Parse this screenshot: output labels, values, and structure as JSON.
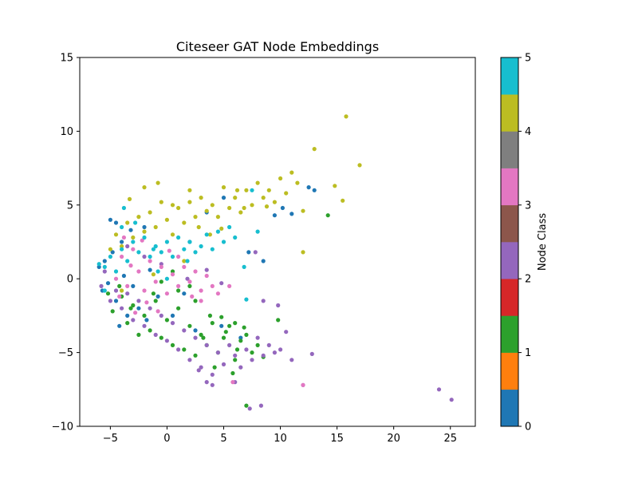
{
  "chart_data": {
    "type": "scatter",
    "title": "Citeseer GAT Node Embeddings",
    "xlabel": "",
    "ylabel": "",
    "xlim": [
      -7.7,
      27.2
    ],
    "ylim": [
      -10,
      15
    ],
    "x_ticks": [
      -5,
      0,
      5,
      10,
      15,
      20,
      25
    ],
    "y_ticks": [
      -10,
      -5,
      0,
      5,
      10,
      15
    ],
    "grid": false,
    "legend": "none",
    "colorbar": {
      "label": "Node Class",
      "range": [
        0,
        5
      ],
      "ticks": [
        0,
        1,
        2,
        3,
        4,
        5
      ],
      "colors": [
        "#1f77b4",
        "#ff7f0e",
        "#2ca02c",
        "#d62728",
        "#9467bd",
        "#8c564b",
        "#e377c2",
        "#7f7f7f",
        "#bcbd22",
        "#17becf"
      ]
    },
    "series": [
      {
        "class": 0,
        "color": "#1f77b4",
        "points": [
          [
            -6.0,
            0.8
          ],
          [
            -5.5,
            1.2
          ],
          [
            -5.2,
            -0.3
          ],
          [
            -4.8,
            1.8
          ],
          [
            -4.5,
            -1.5
          ],
          [
            -4.0,
            2.5
          ],
          [
            -3.8,
            0.2
          ],
          [
            -3.5,
            -2.5
          ],
          [
            -3.2,
            3.3
          ],
          [
            -5.7,
            -0.8
          ],
          [
            -4.2,
            -3.2
          ],
          [
            -2.5,
            -2.0
          ],
          [
            -1.8,
            -2.8
          ],
          [
            -0.8,
            -1.2
          ],
          [
            0.5,
            -2.5
          ],
          [
            1.5,
            -1.0
          ],
          [
            2.5,
            -3.5
          ],
          [
            4.8,
            -3.2
          ],
          [
            6.5,
            -4.0
          ],
          [
            3.5,
            4.5
          ],
          [
            5.0,
            5.5
          ],
          [
            8.5,
            1.2
          ],
          [
            9.5,
            4.3
          ],
          [
            10.2,
            4.8
          ],
          [
            11.0,
            4.4
          ],
          [
            12.5,
            6.2
          ],
          [
            13.0,
            6.0
          ],
          [
            7.2,
            1.8
          ],
          [
            2.0,
            2.5
          ],
          [
            -2.0,
            3.5
          ],
          [
            -4.5,
            3.8
          ],
          [
            -5.0,
            4.0
          ],
          [
            -3.0,
            -0.5
          ],
          [
            -1.5,
            0.6
          ]
        ]
      },
      {
        "class": 1,
        "color": "#2ca02c",
        "points": [
          [
            -5.2,
            -1.0
          ],
          [
            -4.8,
            -2.2
          ],
          [
            -4.0,
            -1.2
          ],
          [
            -3.5,
            -3.0
          ],
          [
            -3.0,
            -1.8
          ],
          [
            -2.5,
            -3.8
          ],
          [
            -2.0,
            -2.5
          ],
          [
            -1.5,
            -3.5
          ],
          [
            -1.0,
            -1.5
          ],
          [
            -0.5,
            -4.0
          ],
          [
            0.0,
            -2.8
          ],
          [
            0.5,
            -4.5
          ],
          [
            1.0,
            -2.0
          ],
          [
            1.5,
            -4.8
          ],
          [
            2.0,
            -3.2
          ],
          [
            2.5,
            -5.2
          ],
          [
            3.0,
            -3.8
          ],
          [
            3.5,
            -4.5
          ],
          [
            4.0,
            -3.0
          ],
          [
            4.5,
            -5.0
          ],
          [
            5.0,
            -4.0
          ],
          [
            5.5,
            -3.2
          ],
          [
            6.0,
            -5.5
          ],
          [
            6.5,
            -4.2
          ],
          [
            7.0,
            -3.8
          ],
          [
            7.5,
            -5.0
          ],
          [
            8.0,
            -4.5
          ],
          [
            5.8,
            -6.4
          ],
          [
            7.0,
            -8.6
          ],
          [
            9.8,
            -2.8
          ],
          [
            6.0,
            -3.0
          ],
          [
            4.2,
            -6.0
          ],
          [
            1.0,
            -0.8
          ],
          [
            0.5,
            0.5
          ],
          [
            -0.5,
            -0.2
          ],
          [
            2.5,
            -1.5
          ],
          [
            3.8,
            -2.5
          ],
          [
            5.2,
            -3.6
          ],
          [
            6.8,
            -3.3
          ],
          [
            8.5,
            -5.3
          ],
          [
            14.2,
            4.3
          ],
          [
            -4.2,
            -0.5
          ],
          [
            -3.2,
            -2.0
          ],
          [
            -1.2,
            -1.0
          ],
          [
            2.0,
            -0.5
          ],
          [
            3.2,
            -4.0
          ],
          [
            6.2,
            -4.8
          ],
          [
            4.8,
            -2.6
          ]
        ]
      },
      {
        "class": 2,
        "color": "#9467bd",
        "points": [
          [
            -5.8,
            -0.5
          ],
          [
            -5.5,
            0.5
          ],
          [
            -5.0,
            -1.5
          ],
          [
            -4.5,
            -0.8
          ],
          [
            -4.0,
            -2.0
          ],
          [
            -3.5,
            -1.0
          ],
          [
            -3.0,
            -2.8
          ],
          [
            -2.5,
            -1.5
          ],
          [
            -2.0,
            -3.2
          ],
          [
            -1.5,
            -2.0
          ],
          [
            -1.0,
            -3.8
          ],
          [
            -0.5,
            -2.5
          ],
          [
            0.0,
            -4.2
          ],
          [
            0.5,
            -3.0
          ],
          [
            1.0,
            -4.8
          ],
          [
            1.5,
            -3.5
          ],
          [
            2.0,
            -5.5
          ],
          [
            2.5,
            -4.0
          ],
          [
            3.0,
            -6.0
          ],
          [
            3.5,
            -4.5
          ],
          [
            4.0,
            -6.5
          ],
          [
            4.5,
            -5.0
          ],
          [
            5.0,
            -5.8
          ],
          [
            5.5,
            -4.5
          ],
          [
            6.0,
            -5.2
          ],
          [
            6.5,
            -6.0
          ],
          [
            7.0,
            -4.8
          ],
          [
            7.5,
            -5.5
          ],
          [
            8.0,
            -4.0
          ],
          [
            8.5,
            -5.2
          ],
          [
            9.0,
            -4.5
          ],
          [
            9.5,
            -5.0
          ],
          [
            10.0,
            -4.8
          ],
          [
            11.0,
            -5.5
          ],
          [
            12.0,
            -7.2
          ],
          [
            12.8,
            -5.1
          ],
          [
            7.3,
            -8.8
          ],
          [
            8.3,
            -8.6
          ],
          [
            6.0,
            -7.0
          ],
          [
            3.5,
            -7.0
          ],
          [
            24.0,
            -7.5
          ],
          [
            25.1,
            -8.2
          ],
          [
            10.5,
            -3.6
          ],
          [
            9.8,
            -1.8
          ],
          [
            8.5,
            -1.5
          ],
          [
            7.8,
            1.8
          ],
          [
            4.8,
            -0.3
          ],
          [
            3.5,
            0.6
          ],
          [
            1.8,
            0.0
          ],
          [
            -0.5,
            1.0
          ],
          [
            -3.5,
            2.2
          ],
          [
            -2.0,
            1.5
          ],
          [
            4.0,
            -7.2
          ],
          [
            2.8,
            -6.2
          ]
        ]
      },
      {
        "class": 3,
        "color": "#e377c2",
        "points": [
          [
            -4.5,
            0.0
          ],
          [
            -4.0,
            1.5
          ],
          [
            -3.5,
            -0.5
          ],
          [
            -3.0,
            2.0
          ],
          [
            -2.5,
            0.5
          ],
          [
            -2.0,
            -0.8
          ],
          [
            -1.5,
            1.2
          ],
          [
            -1.0,
            -0.2
          ],
          [
            -0.5,
            0.8
          ],
          [
            0.0,
            -1.0
          ],
          [
            0.5,
            0.3
          ],
          [
            1.0,
            -0.5
          ],
          [
            1.5,
            0.8
          ],
          [
            2.0,
            -0.2
          ],
          [
            2.5,
            0.5
          ],
          [
            3.0,
            -0.8
          ],
          [
            3.5,
            0.2
          ],
          [
            4.0,
            -0.5
          ],
          [
            4.5,
            -1.0
          ],
          [
            5.5,
            -0.5
          ],
          [
            5.8,
            -7.0
          ],
          [
            3.0,
            -1.5
          ],
          [
            -2.8,
            -2.3
          ],
          [
            -3.8,
            2.8
          ],
          [
            -2.2,
            2.6
          ],
          [
            12.0,
            -7.2
          ],
          [
            1.0,
            1.5
          ],
          [
            -1.8,
            -1.6
          ],
          [
            -0.8,
            -2.2
          ],
          [
            2.2,
            -1.2
          ],
          [
            -4.2,
            -1.2
          ],
          [
            -3.2,
            0.9
          ],
          [
            0.2,
            1.9
          ]
        ]
      },
      {
        "class": 4,
        "color": "#bcbd22",
        "points": [
          [
            -5.0,
            2.0
          ],
          [
            -4.5,
            3.0
          ],
          [
            -4.0,
            2.2
          ],
          [
            -3.5,
            3.8
          ],
          [
            -3.0,
            2.8
          ],
          [
            -2.5,
            4.2
          ],
          [
            -2.0,
            3.2
          ],
          [
            -1.5,
            4.5
          ],
          [
            -1.0,
            3.5
          ],
          [
            -0.5,
            5.2
          ],
          [
            0.0,
            4.0
          ],
          [
            0.5,
            3.0
          ],
          [
            1.0,
            4.8
          ],
          [
            1.5,
            3.8
          ],
          [
            2.0,
            5.2
          ],
          [
            2.5,
            4.2
          ],
          [
            3.0,
            5.5
          ],
          [
            3.5,
            4.6
          ],
          [
            4.0,
            5.0
          ],
          [
            4.5,
            4.2
          ],
          [
            5.0,
            6.2
          ],
          [
            5.5,
            4.8
          ],
          [
            6.0,
            5.5
          ],
          [
            6.5,
            4.5
          ],
          [
            7.0,
            6.0
          ],
          [
            7.5,
            5.0
          ],
          [
            8.0,
            6.5
          ],
          [
            8.5,
            5.5
          ],
          [
            9.0,
            6.0
          ],
          [
            9.5,
            5.2
          ],
          [
            10.0,
            6.8
          ],
          [
            10.5,
            5.8
          ],
          [
            11.0,
            7.2
          ],
          [
            11.5,
            6.5
          ],
          [
            12.0,
            4.6
          ],
          [
            13.0,
            8.8
          ],
          [
            15.8,
            11.0
          ],
          [
            17.0,
            7.7
          ],
          [
            14.8,
            6.3
          ],
          [
            15.5,
            5.3
          ],
          [
            12.0,
            1.8
          ],
          [
            -2.0,
            6.2
          ],
          [
            -0.8,
            6.5
          ],
          [
            2.0,
            6.0
          ],
          [
            6.2,
            6.0
          ],
          [
            -3.3,
            5.4
          ],
          [
            -1.2,
            0.3
          ],
          [
            1.5,
            1.2
          ],
          [
            -4.0,
            -0.8
          ],
          [
            0.5,
            5.0
          ],
          [
            2.8,
            3.5
          ],
          [
            3.8,
            3.0
          ],
          [
            4.8,
            3.4
          ],
          [
            6.8,
            4.8
          ],
          [
            8.8,
            4.9
          ]
        ]
      },
      {
        "class": 5,
        "color": "#17becf",
        "points": [
          [
            -5.5,
            0.8
          ],
          [
            -5.0,
            1.5
          ],
          [
            -4.5,
            0.5
          ],
          [
            -4.0,
            2.0
          ],
          [
            -3.5,
            1.2
          ],
          [
            -3.0,
            2.5
          ],
          [
            -2.5,
            1.8
          ],
          [
            -2.0,
            2.8
          ],
          [
            -1.5,
            1.5
          ],
          [
            -1.0,
            2.2
          ],
          [
            -0.5,
            1.8
          ],
          [
            0.0,
            2.5
          ],
          [
            0.5,
            1.5
          ],
          [
            1.0,
            2.8
          ],
          [
            1.5,
            2.0
          ],
          [
            2.0,
            2.5
          ],
          [
            2.5,
            1.8
          ],
          [
            3.0,
            2.2
          ],
          [
            3.5,
            3.0
          ],
          [
            4.0,
            2.0
          ],
          [
            4.5,
            3.2
          ],
          [
            5.0,
            2.5
          ],
          [
            5.5,
            3.5
          ],
          [
            6.0,
            2.8
          ],
          [
            -4.0,
            3.5
          ],
          [
            -3.8,
            4.8
          ],
          [
            -5.5,
            -0.8
          ],
          [
            -6.0,
            1.0
          ],
          [
            6.8,
            0.8
          ],
          [
            7.0,
            -1.4
          ],
          [
            7.5,
            6.0
          ],
          [
            8.0,
            3.2
          ],
          [
            0.0,
            0.0
          ],
          [
            -1.2,
            2.0
          ],
          [
            1.8,
            1.2
          ],
          [
            -2.8,
            3.8
          ],
          [
            -0.8,
            0.5
          ]
        ]
      }
    ]
  }
}
